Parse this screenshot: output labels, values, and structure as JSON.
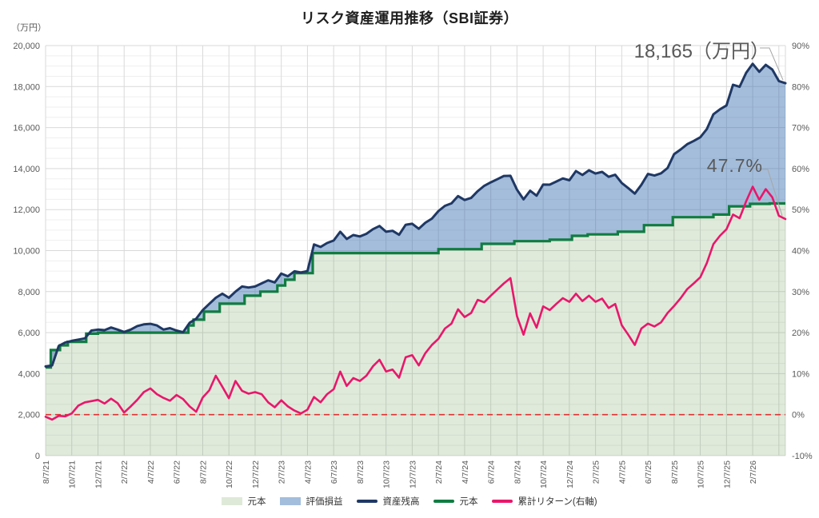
{
  "title": "リスク資産運用推移（SBI証券）",
  "annotations": {
    "balance": "18,165（万円）",
    "cumulative_return": "47.7%"
  },
  "left_axis": {
    "unit": "（万円）",
    "min": 0,
    "max": 20000,
    "major_step": 2000,
    "minor_step": 500,
    "tick_labels": [
      "0",
      "2,000",
      "4,000",
      "6,000",
      "8,000",
      "10,000",
      "12,000",
      "14,000",
      "16,000",
      "18,000",
      "20,000"
    ]
  },
  "right_axis": {
    "min": -10,
    "max": 90,
    "major_step": 10,
    "tick_labels": [
      "-10%",
      "0%",
      "10%",
      "20%",
      "30%",
      "40%",
      "50%",
      "60%",
      "70%",
      "80%",
      "90%"
    ]
  },
  "x_axis": {
    "labels": [
      "8/7/21",
      "10/7/21",
      "12/7/21",
      "2/7/22",
      "4/7/22",
      "6/7/22",
      "8/7/22",
      "10/7/22",
      "12/7/22",
      "2/7/23",
      "4/7/23",
      "6/7/23",
      "8/7/23",
      "10/7/23",
      "12/7/23",
      "2/7/24",
      "4/7/24",
      "6/7/24",
      "8/7/24",
      "10/7/24",
      "12/7/24",
      "2/7/25",
      "4/7/25",
      "6/7/25",
      "8/7/25",
      "10/7/25",
      "12/7/25",
      "2/7/26"
    ],
    "label_interval_months": 2
  },
  "legend": {
    "items": [
      {
        "label": "元本",
        "type": "area",
        "color": "#dfe9d8"
      },
      {
        "label": "評価損益",
        "type": "area",
        "color": "#a3bddc"
      },
      {
        "label": "資産残高",
        "type": "line",
        "color": "#1f3864"
      },
      {
        "label": "元本",
        "type": "line",
        "color": "#107c41"
      },
      {
        "label": "累計リターン(右軸)",
        "type": "line",
        "color": "#e8176b"
      }
    ]
  },
  "colors": {
    "balance_line": "#1f3864",
    "gain_band_fill": "rgba(47,104,174,0.44)",
    "principal_line": "#107c41",
    "principal_fill": "rgba(112,160,90,0.22)",
    "return_line": "#e8176b",
    "zero_line": "#e03232",
    "grid_major": "#d9d9d9",
    "grid_minor": "#efefef",
    "annotation_text": "#595959",
    "connector": "#a6a6a6"
  },
  "chart_data": {
    "type": "combo",
    "x_start_label": "8/7/21",
    "x_unit": "months since 8/7/21",
    "x_step_months": 0.5,
    "x_total_months": 56.5,
    "left_axis_range": [
      0,
      20000
    ],
    "right_axis_range": [
      -10,
      90
    ],
    "grid": true,
    "legend_position": "bottom",
    "baseline": {
      "axis": "right",
      "value": 0,
      "style": "dashed",
      "color": "#e03232"
    },
    "series": [
      {
        "name": "資産残高",
        "axis": "left",
        "type": "line",
        "color": "#1f3864",
        "values": [
          4350,
          4400,
          5350,
          5520,
          5600,
          5660,
          5720,
          6100,
          6150,
          6120,
          6250,
          6150,
          6030,
          6150,
          6320,
          6400,
          6430,
          6350,
          6150,
          6220,
          6100,
          6020,
          6480,
          6680,
          7100,
          7400,
          7700,
          7900,
          7700,
          8000,
          8250,
          8200,
          8250,
          8400,
          8550,
          8450,
          8880,
          8750,
          8990,
          8930,
          9000,
          10300,
          10180,
          10370,
          10490,
          10920,
          10570,
          10760,
          10690,
          10820,
          11045,
          11200,
          10920,
          10965,
          10770,
          11260,
          11310,
          11065,
          11360,
          11560,
          11930,
          12185,
          12305,
          12660,
          12466,
          12570,
          12900,
          13160,
          13330,
          13480,
          13640,
          13650,
          12970,
          12500,
          12920,
          12680,
          13220,
          13215,
          13370,
          13520,
          13430,
          13880,
          13690,
          13920,
          13760,
          13840,
          13600,
          13700,
          13300,
          13050,
          12780,
          13210,
          13740,
          13660,
          13770,
          14030,
          14700,
          14930,
          15190,
          15350,
          15530,
          15930,
          16650,
          16890,
          17080,
          18090,
          17990,
          18670,
          19110,
          18720,
          19060,
          18830,
          18270,
          18165
        ]
      },
      {
        "name": "元本",
        "axis": "left",
        "type": "step-line-area",
        "color": "#107c41",
        "step_points": [
          [
            0,
            4300
          ],
          [
            0.4,
            5150
          ],
          [
            1.1,
            5380
          ],
          [
            1.7,
            5550
          ],
          [
            3.1,
            5950
          ],
          [
            4.0,
            6000
          ],
          [
            10.9,
            6350
          ],
          [
            11.3,
            6630
          ],
          [
            12.1,
            7020
          ],
          [
            13.3,
            7410
          ],
          [
            15.2,
            7800
          ],
          [
            16.4,
            8000
          ],
          [
            17.7,
            8300
          ],
          [
            18.3,
            8580
          ],
          [
            19.0,
            8900
          ],
          [
            20.4,
            9880
          ],
          [
            30.0,
            10070
          ],
          [
            33.3,
            10330
          ],
          [
            35.8,
            10460
          ],
          [
            38.5,
            10530
          ],
          [
            40.2,
            10720
          ],
          [
            41.4,
            10790
          ],
          [
            43.7,
            10920
          ],
          [
            45.7,
            11240
          ],
          [
            47.9,
            11630
          ],
          [
            51.0,
            11760
          ],
          [
            52.2,
            12160
          ],
          [
            53.8,
            12280
          ],
          [
            55.3,
            12300
          ],
          [
            56.5,
            12300
          ]
        ]
      },
      {
        "name": "評価損益",
        "axis": "left",
        "type": "band",
        "color": "rgba(47,104,174,0.44)",
        "description": "資産残高と元本の差を塗りつぶした帯"
      },
      {
        "name": "累計リターン(右軸)",
        "axis": "right",
        "type": "line",
        "color": "#e8176b",
        "values": [
          -0.5,
          -1.2,
          -0.3,
          -0.4,
          0.3,
          2.2,
          3.0,
          3.3,
          3.6,
          2.7,
          3.9,
          2.8,
          0.5,
          2.0,
          3.6,
          5.5,
          6.4,
          5.0,
          4.1,
          3.4,
          4.8,
          3.8,
          2.0,
          0.7,
          4.2,
          5.9,
          9.5,
          6.8,
          4.0,
          8.2,
          5.8,
          5.1,
          5.5,
          5.0,
          3.0,
          1.8,
          3.5,
          2.0,
          1.0,
          0.3,
          1.2,
          4.3,
          3.0,
          5.0,
          6.2,
          10.5,
          7.0,
          8.9,
          8.2,
          9.5,
          11.8,
          13.4,
          10.5,
          11.0,
          9.0,
          14.0,
          14.5,
          12.0,
          15.0,
          17.0,
          18.5,
          21.0,
          22.2,
          25.7,
          23.8,
          24.8,
          28.0,
          27.4,
          29.0,
          30.5,
          32.0,
          33.3,
          24.0,
          19.5,
          24.7,
          21.2,
          26.4,
          25.5,
          27.0,
          28.4,
          27.5,
          29.5,
          27.7,
          29.0,
          27.5,
          28.3,
          26.0,
          27.0,
          21.8,
          19.5,
          17.0,
          21.0,
          22.2,
          21.5,
          22.5,
          24.8,
          26.5,
          28.4,
          30.6,
          32.0,
          33.5,
          37.0,
          41.6,
          43.6,
          45.2,
          48.8,
          47.9,
          52.0,
          55.6,
          52.4,
          55.0,
          53.0,
          48.5,
          47.7
        ]
      }
    ],
    "final_values": {
      "資産残高": 18165,
      "累計リターン": 47.7,
      "元本": 12300
    }
  }
}
